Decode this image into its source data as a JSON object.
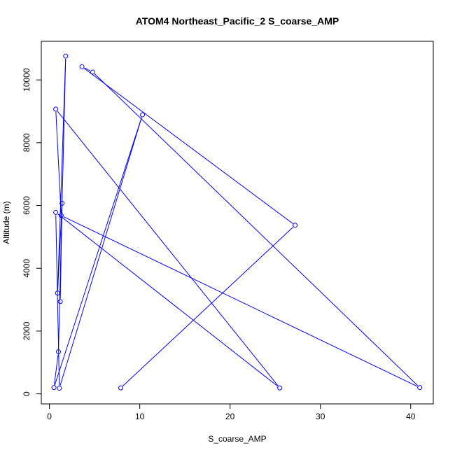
{
  "chart_data": {
    "type": "line",
    "title": "ATOM4 Northeast_Pacific_2 S_coarse_AMP",
    "xlabel": "S_coarse_AMP",
    "ylabel": "Altitude (m)",
    "xlim": [
      -0.9,
      42.5
    ],
    "ylim": [
      -320,
      11230
    ],
    "xticks": [
      0,
      10,
      20,
      30,
      40
    ],
    "yticks": [
      0,
      2000,
      4000,
      6000,
      8000,
      10000
    ],
    "series_color": "#0000ff",
    "series": [
      {
        "x": [
          7.9,
          27.2,
          3.6,
          4.8,
          41.0,
          1.3,
          0.7,
          25.5,
          0.7,
          1.1,
          10.3,
          0.5,
          1.0,
          1.8,
          0.9,
          1.4,
          1.2
        ],
        "y": [
          190,
          5370,
          10420,
          10250,
          200,
          5680,
          9070,
          190,
          5780,
          180,
          8890,
          200,
          1340,
          10760,
          3210,
          6070,
          2940
        ]
      }
    ]
  }
}
